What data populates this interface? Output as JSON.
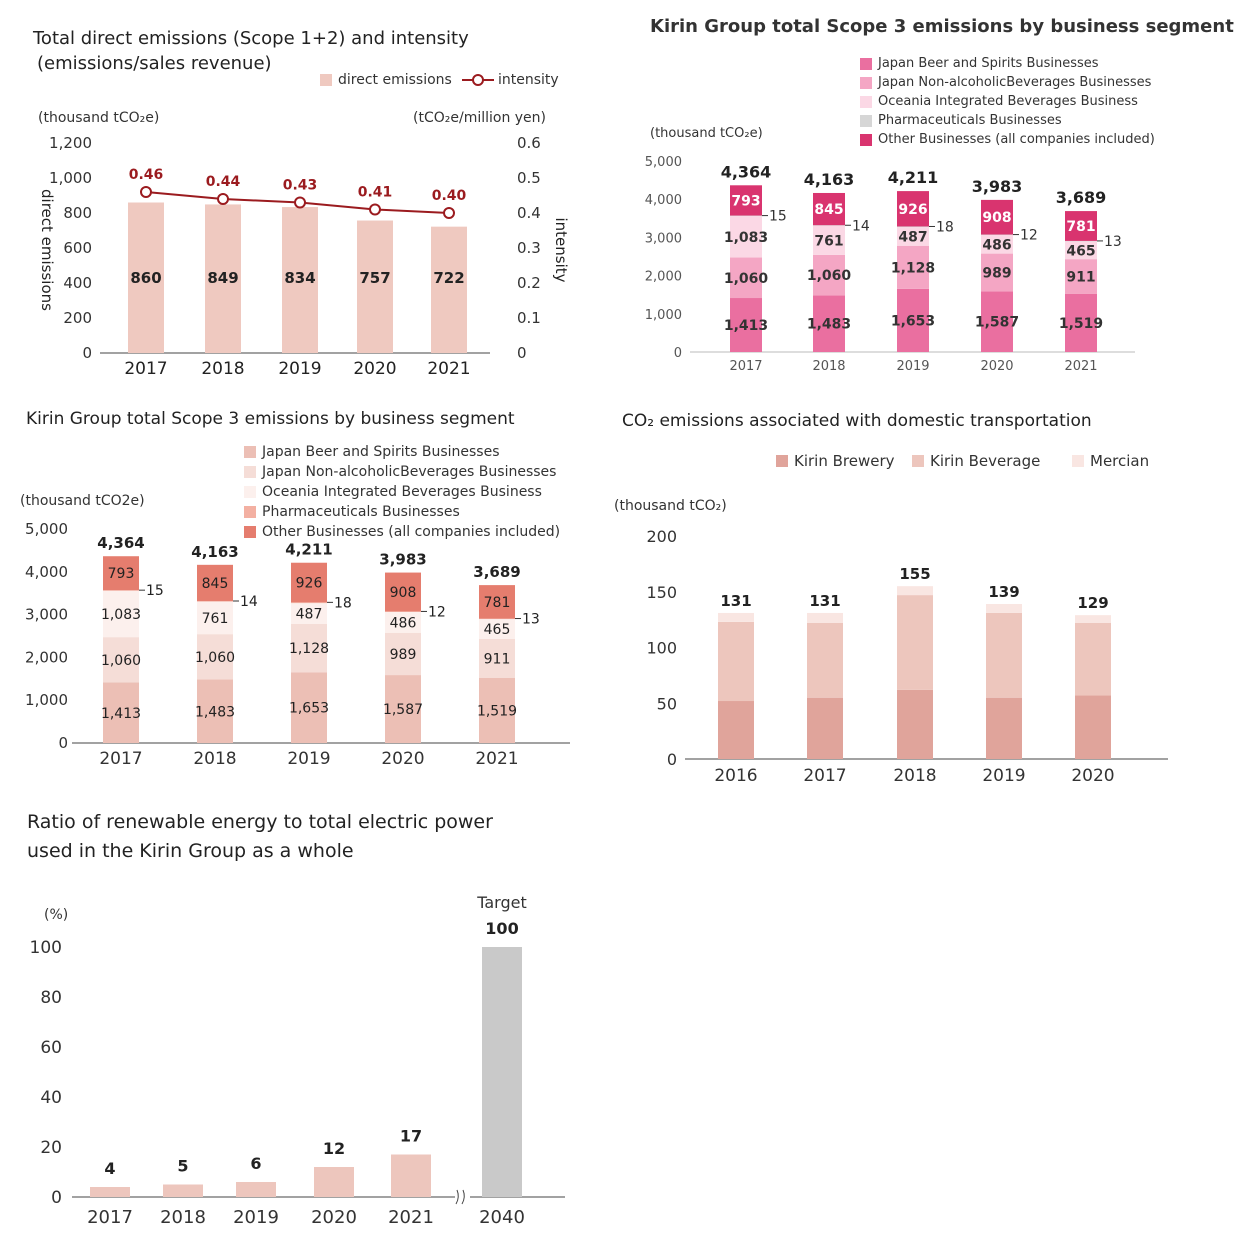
{
  "chart_data": [
    {
      "id": "c1",
      "type": "bar",
      "title": "Total direct emissions (Scope 1+2) and intensity\n (emissions/sales revenue)",
      "ylabel": "direct emissions",
      "y2label": "intensity",
      "unit_left": "(thousand tCO₂e)",
      "unit_right": "(tCO₂e/million yen)",
      "categories": [
        "2017",
        "2018",
        "2019",
        "2020",
        "2021"
      ],
      "ylim": [
        0,
        1200
      ],
      "yticks": [
        "0",
        "200",
        "400",
        "600",
        "800",
        "1,000",
        "1,200"
      ],
      "y2lim": [
        0,
        0.6
      ],
      "y2ticks": [
        "0",
        "0.1",
        "0.2",
        "0.3",
        "0.4",
        "0.5",
        "0.6"
      ],
      "series": [
        {
          "name": "direct emissions",
          "type": "bar",
          "values": [
            860,
            849,
            834,
            757,
            722
          ],
          "color": "#efc9c0"
        },
        {
          "name": "intensity",
          "type": "line",
          "values": [
            0.46,
            0.44,
            0.43,
            0.41,
            0.4
          ],
          "labels": [
            "0.46",
            "0.44",
            "0.43",
            "0.41",
            "0.40"
          ],
          "color": "#9b1b1f"
        }
      ],
      "legend": "top-right"
    },
    {
      "id": "c2",
      "type": "bar",
      "stacked": true,
      "title": "Kirin Group total Scope 3 emissions by business segment",
      "unit": "(thousand tCO₂e)",
      "categories": [
        "2017",
        "2018",
        "2019",
        "2020",
        "2021"
      ],
      "ylim": [
        0,
        5000
      ],
      "yticks": [
        "0",
        "1,000",
        "2,000",
        "3,000",
        "4,000",
        "5,000"
      ],
      "totals": [
        "4,364",
        "4,163",
        "4,211",
        "3,983",
        "3,689"
      ],
      "series": [
        {
          "name": "Japan Beer and Spirits Businesses",
          "values": [
            1413,
            1483,
            1653,
            1587,
            1519
          ],
          "labels": [
            "1,413",
            "1,483",
            "1,653",
            "1,587",
            "1,519"
          ],
          "color": "#ea6fa0"
        },
        {
          "name": "Japan Non-alcoholicBeverages Businesses",
          "values": [
            1060,
            1060,
            1128,
            989,
            911
          ],
          "labels": [
            "1,060",
            "1,060",
            "1,128",
            "989",
            "911"
          ],
          "color": "#f4a6c4"
        },
        {
          "name": "Oceania Integrated Beverages Business",
          "values": [
            1083,
            761,
            487,
            486,
            465
          ],
          "labels": [
            "1,083",
            "761",
            "487",
            "486",
            "465"
          ],
          "color": "#fbd8e5"
        },
        {
          "name": "Pharmaceuticals Businesses",
          "values": [
            15,
            14,
            18,
            12,
            13
          ],
          "labels": [
            "15",
            "14",
            "18",
            "12",
            "13"
          ],
          "color": "#d6d6d6"
        },
        {
          "name": "Other Businesses (all companies included)",
          "values": [
            793,
            845,
            926,
            908,
            781
          ],
          "labels": [
            "793",
            "845",
            "926",
            "908",
            "781"
          ],
          "color": "#d9346f"
        }
      ],
      "legend": "top-right"
    },
    {
      "id": "c3",
      "type": "bar",
      "stacked": true,
      "title": "Kirin Group total Scope 3 emissions by business segment",
      "unit": "(thousand tCO2e)",
      "categories": [
        "2017",
        "2018",
        "2019",
        "2020",
        "2021"
      ],
      "ylim": [
        0,
        5000
      ],
      "yticks": [
        "0",
        "1,000",
        "2,000",
        "3,000",
        "4,000",
        "5,000"
      ],
      "totals": [
        "4,364",
        "4,163",
        "4,211",
        "3,983",
        "3,689"
      ],
      "series": [
        {
          "name": "Japan Beer and Spirits Businesses",
          "values": [
            1413,
            1483,
            1653,
            1587,
            1519
          ],
          "labels": [
            "1,413",
            "1,483",
            "1,653",
            "1,587",
            "1,519"
          ],
          "color": "#ecbfb5"
        },
        {
          "name": "Japan Non-alcoholicBeverages Businesses",
          "values": [
            1060,
            1060,
            1128,
            989,
            911
          ],
          "labels": [
            "1,060",
            "1,060",
            "1,128",
            "989",
            "911"
          ],
          "color": "#f5ddd7"
        },
        {
          "name": "Oceania Integrated Beverages Business",
          "values": [
            1083,
            761,
            487,
            486,
            465
          ],
          "labels": [
            "1,083",
            "761",
            "487",
            "486",
            "465"
          ],
          "color": "#fcf0ed"
        },
        {
          "name": "Pharmaceuticals Businesses",
          "values": [
            15,
            14,
            18,
            12,
            13
          ],
          "labels": [
            "15",
            "14",
            "18",
            "12",
            "13"
          ],
          "color": "#f3b0a2"
        },
        {
          "name": "Other Businesses (all companies included)",
          "values": [
            793,
            845,
            926,
            908,
            781
          ],
          "labels": [
            "793",
            "845",
            "926",
            "908",
            "781"
          ],
          "color": "#e57d6e"
        }
      ],
      "legend": "top-right"
    },
    {
      "id": "c4",
      "type": "bar",
      "stacked": true,
      "title": "CO₂ emissions associated with domestic transportation",
      "unit": "(thousand tCO₂)",
      "categories": [
        "2016",
        "2017",
        "2018",
        "2019",
        "2020"
      ],
      "ylim": [
        0,
        200
      ],
      "yticks": [
        "0",
        "50",
        "100",
        "150",
        "200"
      ],
      "totals": [
        "131",
        "131",
        "155",
        "139",
        "129"
      ],
      "series": [
        {
          "name": "Kirin Brewery",
          "values": [
            52,
            55,
            62,
            55,
            57
          ],
          "color": "#e0a49b"
        },
        {
          "name": "Kirin Beverage",
          "values": [
            71,
            67,
            85,
            76,
            65
          ],
          "color": "#edc6bd"
        },
        {
          "name": "Mercian",
          "values": [
            8,
            9,
            8,
            8,
            7
          ],
          "color": "#f9e6e2"
        }
      ],
      "legend": "top"
    },
    {
      "id": "c5",
      "type": "bar",
      "title": "Ratio of renewable energy to total electric power\nused in the Kirin Group as a whole",
      "unit": "(%)",
      "categories": [
        "2017",
        "2018",
        "2019",
        "2020",
        "2021",
        "2040"
      ],
      "ylim": [
        0,
        100
      ],
      "yticks": [
        "0",
        "20",
        "40",
        "60",
        "80",
        "100"
      ],
      "values": [
        4,
        5,
        6,
        12,
        17,
        100
      ],
      "labels": [
        "4",
        "5",
        "6",
        "12",
        "17",
        "100"
      ],
      "target_label": "Target",
      "colors": [
        "#edc6bd",
        "#edc6bd",
        "#edc6bd",
        "#edc6bd",
        "#edc6bd",
        "#c9c9c9"
      ]
    }
  ]
}
